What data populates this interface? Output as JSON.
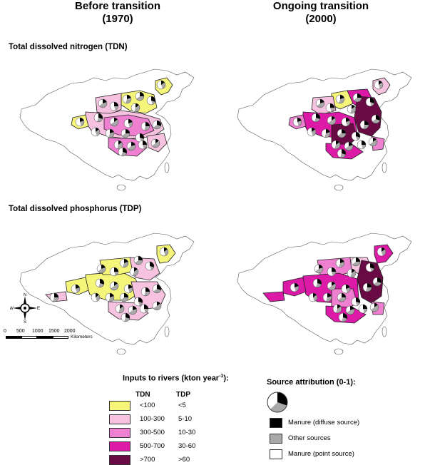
{
  "columns": {
    "left": {
      "title_line1": "Before transition",
      "title_line2": "(1970)"
    },
    "right": {
      "title_line1": "Ongoing transition",
      "title_line2": "(2000)"
    }
  },
  "sections": {
    "tdn": "Total dissolved nitrogen (TDN)",
    "tdp": "Total dissolved phosphorus (TDP)"
  },
  "compass": {
    "n": "N",
    "s": "S",
    "e": "E",
    "w": "W"
  },
  "scale": {
    "ticks": [
      "0",
      "500",
      "1000",
      "1500",
      "2000"
    ],
    "unit": "Kilometers"
  },
  "inputs_legend": {
    "title": "Inputs to rivers (kton year",
    "title_sup": "-1",
    "title_end": "):",
    "col_tdn": "TDN",
    "col_tdp": "TDP",
    "rows": [
      {
        "color": "#f5f57a",
        "tdn": "<100",
        "tdp": "<5"
      },
      {
        "color": "#f6c2e0",
        "tdn": "100-300",
        "tdp": "5-10"
      },
      {
        "color": "#ef7fd0",
        "tdn": "300-500",
        "tdp": "10-30"
      },
      {
        "color": "#dd1aa8",
        "tdn": "500-700",
        "tdp": "30-60"
      },
      {
        "color": "#6a0a44",
        "tdn": ">700",
        "tdp": ">60"
      }
    ]
  },
  "source_legend": {
    "title": "Source attribution (0-1):",
    "items": [
      {
        "color": "#000000",
        "label": "Manure (diffuse source)"
      },
      {
        "color": "#a8a8a8",
        "label": "Other sources"
      },
      {
        "color": "#ffffff",
        "label": "Manure (point source)"
      }
    ]
  },
  "map_colors": {
    "yellow": "#f5f57a",
    "light_pink": "#f6c2e0",
    "pink": "#ef7fd0",
    "magenta": "#dd1aa8",
    "dark": "#6a0a44"
  }
}
